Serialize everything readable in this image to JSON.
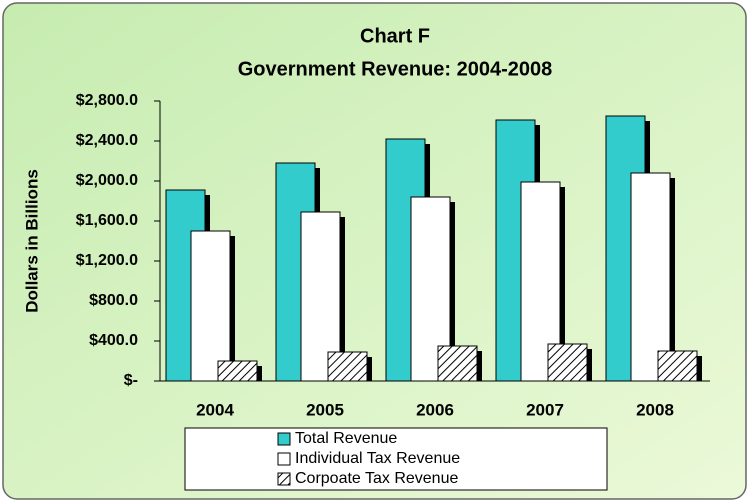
{
  "chart_data": {
    "type": "bar",
    "title": "Chart F",
    "subtitle": "Government Revenue: 2004-2008",
    "y_label": "Dollars in Billions",
    "categories": [
      "2004",
      "2005",
      "2006",
      "2007",
      "2008"
    ],
    "series": [
      {
        "name": "Total Revenue",
        "color": "#33cccc",
        "values": [
          1910,
          2180,
          2420,
          2610,
          2650
        ]
      },
      {
        "name": "Individual Tax Revenue",
        "color": "#ffffff",
        "values": [
          1500,
          1690,
          1840,
          1990,
          2080
        ]
      },
      {
        "name": "Corpoate Tax Revenue",
        "color": "#ffffff",
        "pattern": "hatch",
        "values": [
          200,
          290,
          350,
          370,
          300
        ]
      }
    ],
    "ylim": [
      0,
      2800
    ],
    "yticks": [
      {
        "value": 0,
        "label": "$-"
      },
      {
        "value": 400,
        "label": "$400.0"
      },
      {
        "value": 800,
        "label": "$800.0"
      },
      {
        "value": 1200,
        "label": "$1,200.0"
      },
      {
        "value": 1600,
        "label": "$1,600.0"
      },
      {
        "value": 2000,
        "label": "$2,000.0"
      },
      {
        "value": 2400,
        "label": "$2,400.0"
      },
      {
        "value": 2800,
        "label": "$2,800.0"
      }
    ],
    "grid": false,
    "legend": "bottom"
  }
}
